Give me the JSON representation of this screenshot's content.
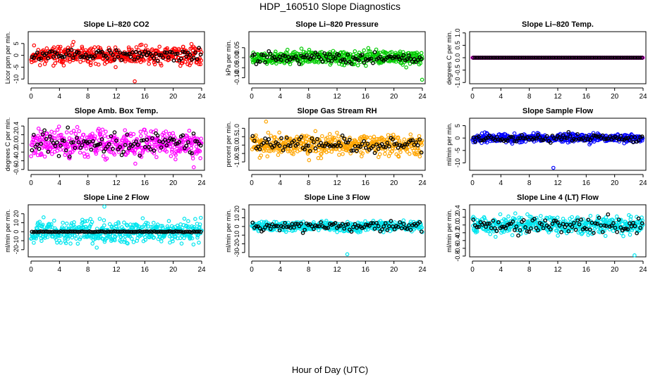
{
  "page": {
    "title": "HDP_160510  Slope Diagnostics",
    "xlabel": "Hour of Day (UTC)"
  },
  "chart_data": [
    {
      "type": "scatter",
      "title": "Slope Li–820 CO2",
      "ylabel": "Licor ppm per min.",
      "xlim": [
        0,
        24
      ],
      "ylim": [
        -12,
        10
      ],
      "yticks": [
        -10,
        -5,
        0,
        5
      ],
      "ytick_labels": [
        "-10",
        "-5",
        "0",
        "5"
      ],
      "xticks": [
        0,
        4,
        8,
        12,
        16,
        20,
        24
      ],
      "xtick_labels": [
        "0",
        "4",
        "8",
        "12",
        "16",
        "20",
        "24"
      ],
      "color": "#ff0000",
      "spread": 3.5,
      "outlier": -11,
      "black_spread": 2.2,
      "seed": 11
    },
    {
      "type": "scatter",
      "title": "Slope Li–820 Pressure",
      "ylabel": "kPa per min.",
      "xlim": [
        0,
        24
      ],
      "ylim": [
        -0.13,
        0.13
      ],
      "yticks": [
        -0.1,
        -0.05,
        0.0,
        0.05
      ],
      "ytick_labels": [
        "-0.10",
        "-0.05",
        "0.00",
        "0.05"
      ],
      "xticks": [
        0,
        4,
        8,
        12,
        16,
        20,
        24
      ],
      "xtick_labels": [
        "0",
        "4",
        "8",
        "12",
        "16",
        "20",
        "24"
      ],
      "color": "#00cc00",
      "spread": 0.03,
      "outlier": -0.11,
      "black_spread": 0.025,
      "seed": 23
    },
    {
      "type": "scatter",
      "title": "Slope Li–820 Temp.",
      "ylabel": "degrees C per min.",
      "xlim": [
        0,
        24
      ],
      "ylim": [
        -1.05,
        1.05
      ],
      "yticks": [
        -1.0,
        -0.5,
        0.0,
        0.5,
        1.0
      ],
      "ytick_labels": [
        "-1.0",
        "-0.5",
        "0.0",
        "0.5",
        "1.0"
      ],
      "xticks": [
        0,
        4,
        8,
        12,
        16,
        20,
        24
      ],
      "xtick_labels": [
        "0",
        "4",
        "8",
        "12",
        "16",
        "20",
        "24"
      ],
      "color": "#ff00ff",
      "spread": 0.0,
      "outlier": 0.0,
      "black_spread": 0.0,
      "seed": 5
    },
    {
      "type": "scatter",
      "title": "Slope Amb. Box Temp.",
      "ylabel": "degrees C per min.",
      "xlim": [
        0,
        24
      ],
      "ylim": [
        -0.62,
        0.58
      ],
      "yticks": [
        -0.6,
        -0.4,
        -0.2,
        0.0,
        0.2,
        0.4
      ],
      "ytick_labels": [
        "-0.6",
        "-0.4",
        "-0.2",
        "0.0",
        "0.2",
        "0.4"
      ],
      "xticks": [
        0,
        4,
        8,
        12,
        16,
        20,
        24
      ],
      "xtick_labels": [
        "0",
        "4",
        "8",
        "12",
        "16",
        "20",
        "24"
      ],
      "color": "#ff00ff",
      "spread": 0.28,
      "outlier": -0.55,
      "black_spread": 0.25,
      "seed": 37
    },
    {
      "type": "scatter",
      "title": "Slope Gas Stream RH",
      "ylabel": "percent per min.",
      "xlim": [
        0,
        24
      ],
      "ylim": [
        -1.5,
        1.6
      ],
      "yticks": [
        -1.0,
        -0.5,
        0.0,
        0.5,
        1.0
      ],
      "ytick_labels": [
        "-1.0",
        "-0.5",
        "0.0",
        "0.5",
        "1.0"
      ],
      "xticks": [
        0,
        4,
        8,
        12,
        16,
        20,
        24
      ],
      "xtick_labels": [
        "0",
        "4",
        "8",
        "12",
        "16",
        "20",
        "24"
      ],
      "color": "#ffa500",
      "spread": 0.55,
      "outlier": 1.4,
      "black_spread": 0.45,
      "seed": 41
    },
    {
      "type": "scatter",
      "title": "Slope Sample Flow",
      "ylabel": "ml/min per min.",
      "xlim": [
        0,
        24
      ],
      "ylim": [
        -13,
        8
      ],
      "yticks": [
        -10,
        -5,
        0,
        5
      ],
      "ytick_labels": [
        "-10",
        "-5",
        "0",
        "5"
      ],
      "xticks": [
        0,
        4,
        8,
        12,
        16,
        20,
        24
      ],
      "xtick_labels": [
        "0",
        "4",
        "8",
        "12",
        "16",
        "20",
        "24"
      ],
      "color": "#0000ff",
      "spread": 1.6,
      "outlier": -12,
      "black_spread": 1.4,
      "seed": 53
    },
    {
      "type": "scatter",
      "title": "Slope Line 2 Flow",
      "ylabel": "ml/min per min.",
      "xlim": [
        0,
        24
      ],
      "ylim": [
        -28,
        30
      ],
      "yticks": [
        -20,
        -10,
        0,
        10,
        20
      ],
      "ytick_labels": [
        "-20",
        "-10",
        "0",
        "10",
        "20"
      ],
      "xticks": [
        0,
        4,
        8,
        12,
        16,
        20,
        24
      ],
      "xtick_labels": [
        "0",
        "4",
        "8",
        "12",
        "16",
        "20",
        "24"
      ],
      "color": "#00e5ee",
      "spread": 11,
      "outlier": 28,
      "black_spread": 0.5,
      "seed": 67
    },
    {
      "type": "scatter",
      "title": "Slope Line 3 Flow",
      "ylabel": "ml/min per min.",
      "xlim": [
        0,
        24
      ],
      "ylim": [
        -35,
        25
      ],
      "yticks": [
        -30,
        -20,
        -10,
        0,
        10,
        20
      ],
      "ytick_labels": [
        "-30",
        "-20",
        "-10",
        "0",
        "10",
        "20"
      ],
      "xticks": [
        0,
        4,
        8,
        12,
        16,
        20,
        24
      ],
      "xtick_labels": [
        "0",
        "4",
        "8",
        "12",
        "16",
        "20",
        "24"
      ],
      "color": "#00e5ee",
      "spread": 5,
      "outlier": -32,
      "black_spread": 5,
      "seed": 71
    },
    {
      "type": "scatter",
      "title": "Slope Line 4 (LT) Flow",
      "ylabel": "ml/min per min.",
      "xlim": [
        0,
        24
      ],
      "ylim": [
        -0.82,
        0.52
      ],
      "yticks": [
        -0.8,
        -0.6,
        -0.4,
        -0.2,
        0.0,
        0.2,
        0.4
      ],
      "ytick_labels": [
        "-0.8",
        "-0.6",
        "-0.4",
        "-0.2",
        "0.0",
        "0.2",
        "0.4"
      ],
      "xticks": [
        0,
        4,
        8,
        12,
        16,
        20,
        24
      ],
      "xtick_labels": [
        "0",
        "4",
        "8",
        "12",
        "16",
        "20",
        "24"
      ],
      "color": "#00e5ee",
      "spread": 0.2,
      "outlier": -0.78,
      "black_spread": 0.18,
      "seed": 83
    }
  ]
}
